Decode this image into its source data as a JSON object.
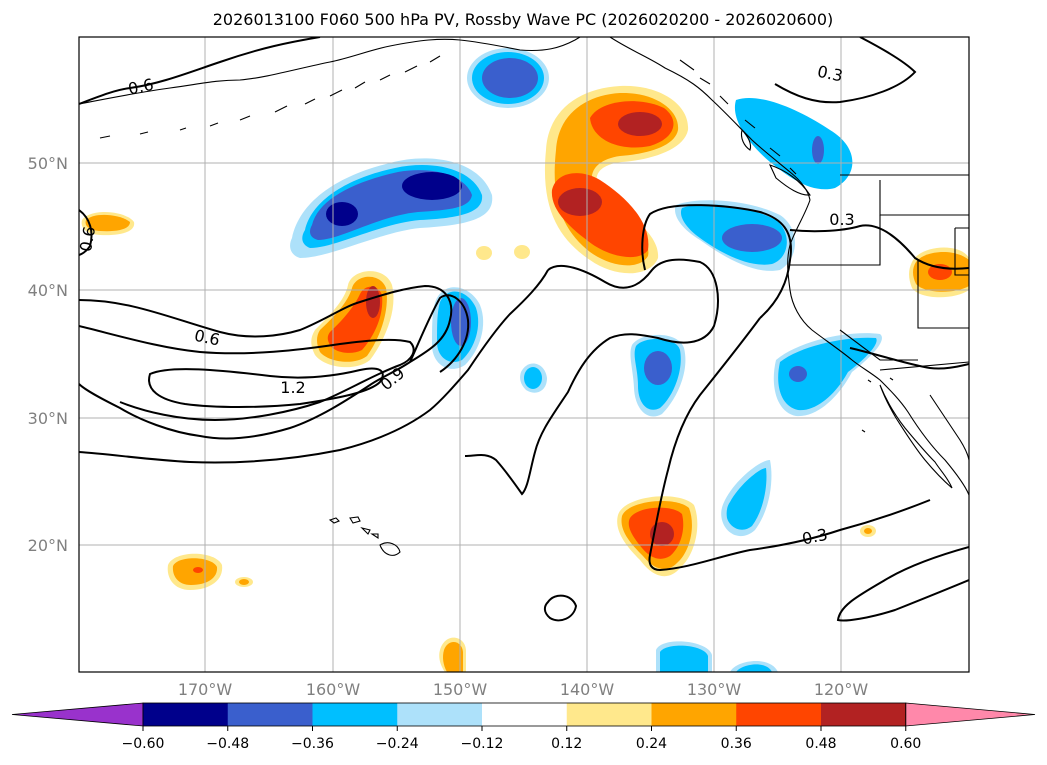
{
  "title": "2026013100 F060 500 hPa PV, Rossby Wave PC (2026020200 - 2026020600)",
  "lat_labels": [
    "50°N",
    "40°N",
    "30°N",
    "20°N"
  ],
  "lon_labels": [
    "170°W",
    "160°W",
    "150°W",
    "140°W",
    "130°W",
    "120°W"
  ],
  "contour_labels": [
    "0.6",
    "0.6",
    "0.6",
    "1.2",
    "0.9",
    "0.3",
    "0.3",
    "0.3"
  ],
  "colorbar": {
    "ticks": [
      "−0.60",
      "−0.48",
      "−0.36",
      "−0.24",
      "−0.12",
      "0.12",
      "0.24",
      "0.36",
      "0.48",
      "0.60"
    ],
    "colors": [
      "#9932CC",
      "#00008B",
      "#3A5FCD",
      "#00BFFF",
      "#ADE1FA",
      "#FFFFFF",
      "#FFE88C",
      "#FFA500",
      "#FF4500",
      "#B22222",
      "#FF88AA"
    ]
  },
  "colors": {
    "dark_blue": "#00008B",
    "royal_blue": "#3A5FCD",
    "sky_blue": "#00BFFF",
    "light_blue": "#ADE1FA",
    "pale_yellow": "#FFE88C",
    "orange": "#FFA500",
    "orange_red": "#FF4500",
    "firebrick": "#B22222"
  }
}
